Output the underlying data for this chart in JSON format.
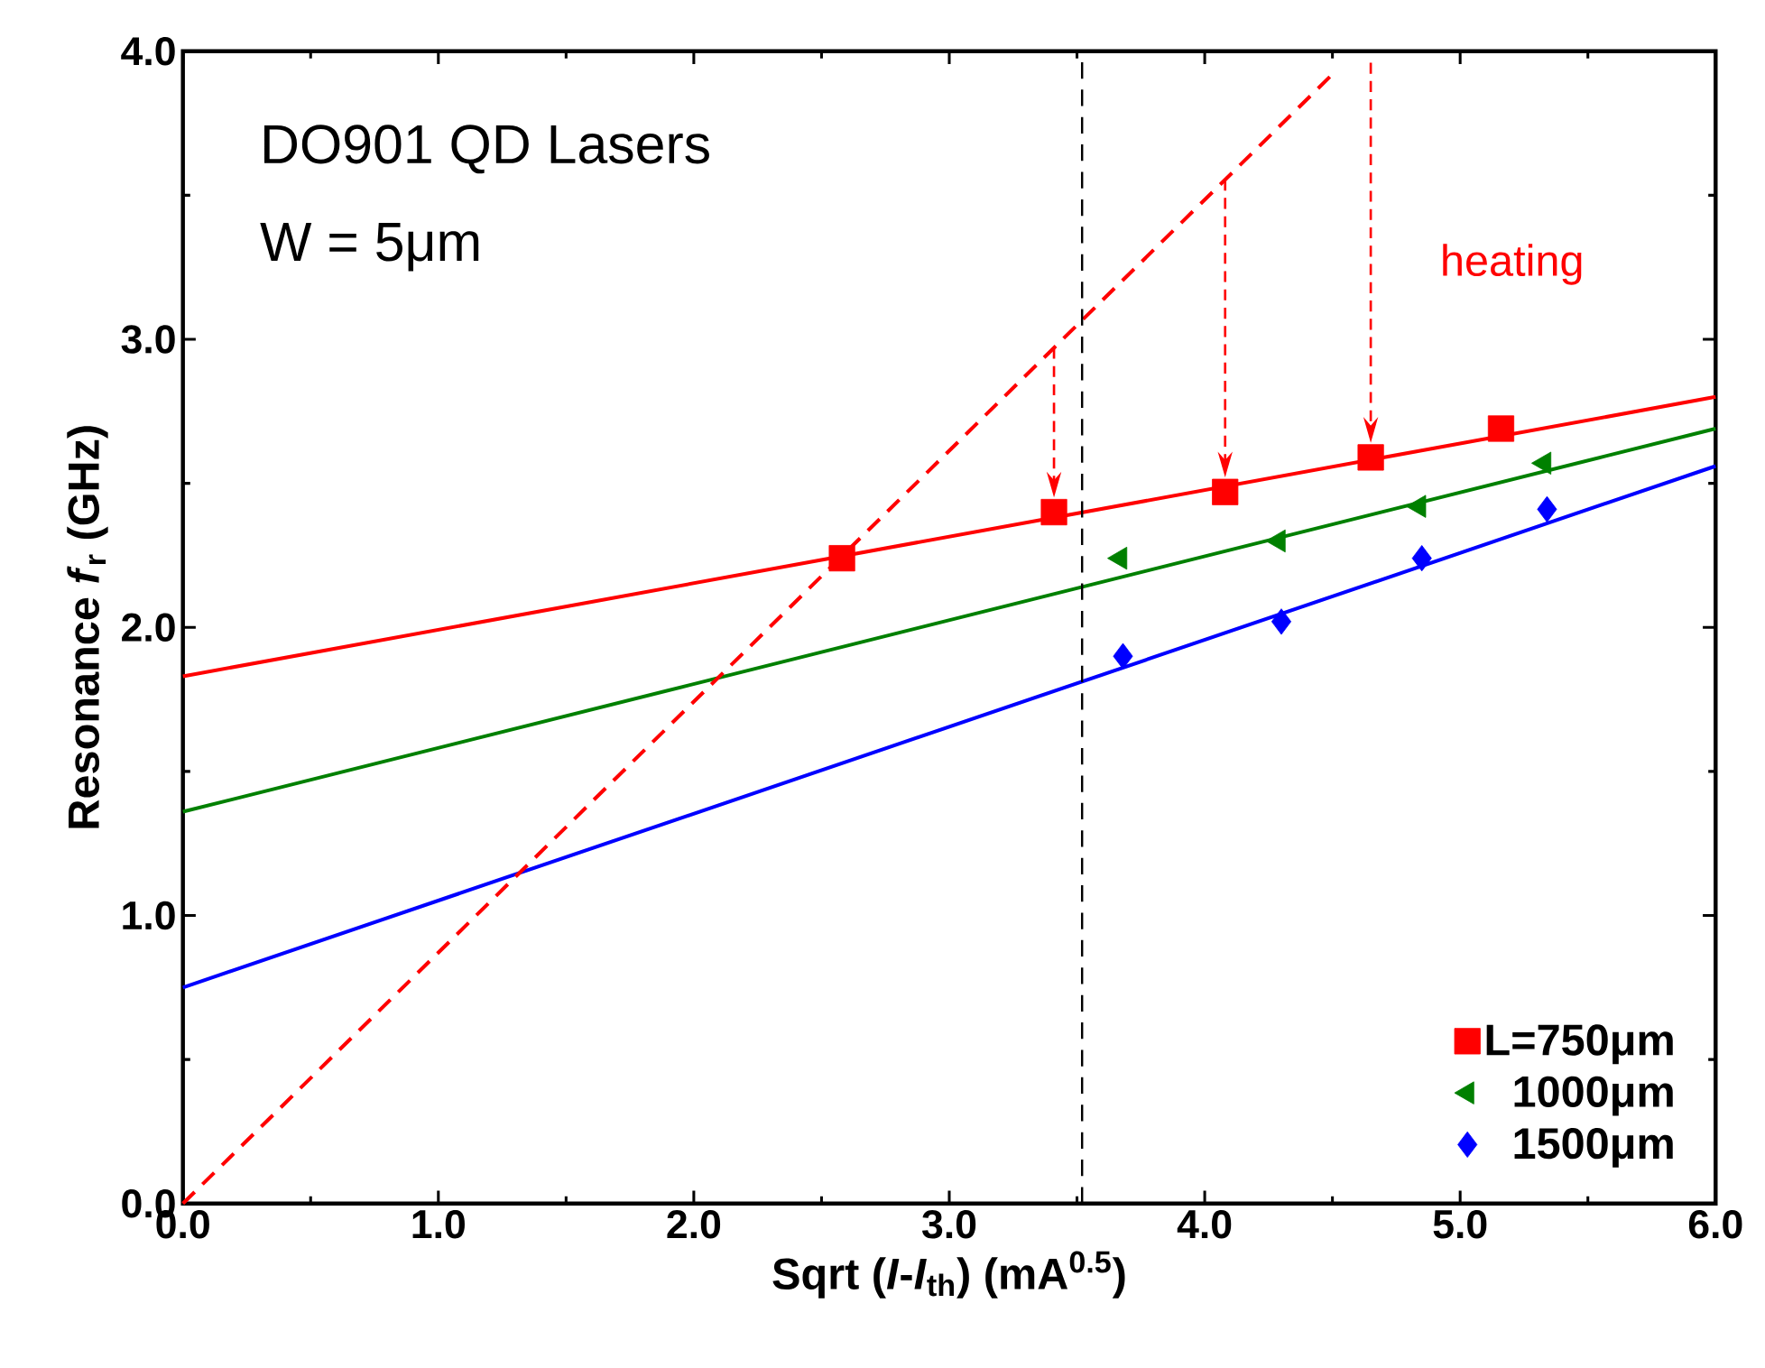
{
  "chart_data": {
    "type": "scatter",
    "xlabel": "Sqrt (*I*-*I*$_{th}$) (mA$^{0.5}$)",
    "ylabel": "Resonance *f*$_{r}$ (GHz)",
    "xlim": [
      0,
      6
    ],
    "ylim": [
      0,
      4
    ],
    "xticks": [
      {
        "value": 0,
        "label": "0.0"
      },
      {
        "value": 1,
        "label": "1.0"
      },
      {
        "value": 2,
        "label": "2.0"
      },
      {
        "value": 3,
        "label": "3.0"
      },
      {
        "value": 4,
        "label": "4.0"
      },
      {
        "value": 5,
        "label": "5.0"
      },
      {
        "value": 6,
        "label": "6.0"
      }
    ],
    "yticks": [
      {
        "value": 0,
        "label": "0.0"
      },
      {
        "value": 1,
        "label": "1.0"
      },
      {
        "value": 2,
        "label": "2.0"
      },
      {
        "value": 3,
        "label": "3.0"
      },
      {
        "value": 4,
        "label": "4.0"
      }
    ],
    "grid": false,
    "legend": "bottom right",
    "ref_lines": [
      {
        "axis": "x",
        "value": 3.52,
        "color": "#000000",
        "line_style": "dashed"
      }
    ],
    "annotations": [
      "DO901 QD Lasers",
      "W = 5μm",
      "heating"
    ],
    "series": [
      {
        "name": "L=750μm",
        "type": "scatter",
        "marker": "square",
        "color": "#ff0000",
        "x": [
          2.58,
          3.41,
          4.08,
          4.65,
          5.16
        ],
        "values": [
          2.24,
          2.4,
          2.47,
          2.59,
          2.69
        ]
      },
      {
        "name": "1000μm",
        "type": "scatter",
        "marker": "triangle",
        "color": "#008000",
        "x": [
          3.67,
          4.29,
          4.84,
          5.33
        ],
        "values": [
          2.24,
          2.3,
          2.42,
          2.57
        ]
      },
      {
        "name": "1500μm",
        "type": "scatter",
        "marker": "diamond",
        "color": "#0000ff",
        "x": [
          3.68,
          4.3,
          4.85,
          5.34
        ],
        "values": [
          1.9,
          2.02,
          2.24,
          2.41
        ]
      },
      {
        "type": "line",
        "color": "#ff0000",
        "line_style": "solid",
        "x": [
          0,
          6
        ],
        "values": [
          1.83,
          2.8
        ]
      },
      {
        "type": "line",
        "color": "#008000",
        "line_style": "solid",
        "x": [
          0,
          6
        ],
        "values": [
          1.36,
          2.69
        ]
      },
      {
        "type": "line",
        "color": "#0000ff",
        "line_style": "solid",
        "x": [
          0,
          6
        ],
        "values": [
          0.75,
          2.56
        ]
      },
      {
        "type": "line",
        "color": "#ff0000",
        "line_style": "dashed",
        "x": [
          0,
          4.5
        ],
        "values": [
          0,
          3.92
        ]
      }
    ]
  }
}
